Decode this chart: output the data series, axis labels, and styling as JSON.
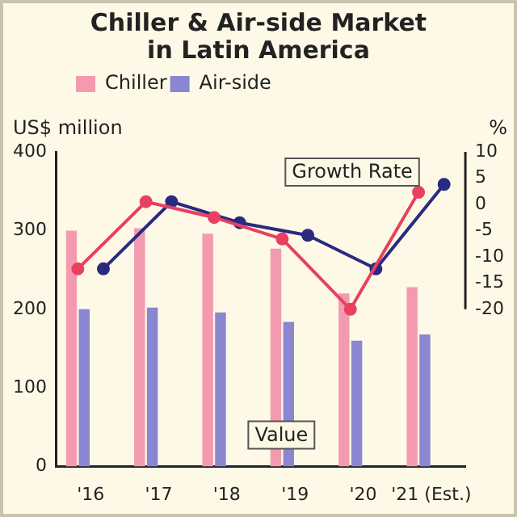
{
  "chart_data": {
    "type": "bar",
    "title": "Chiller & Air-side Market\nin Latin America",
    "ylabel": "US$ million",
    "y2label": "%",
    "categories": [
      "'16",
      "'17",
      "'18",
      "'19",
      "'20",
      "'21 (Est.)"
    ],
    "series": [
      {
        "name": "Chiller",
        "color": "#f49ab0",
        "values": [
          300,
          303,
          296,
          277,
          220,
          228
        ]
      },
      {
        "name": "Air-side",
        "color": "#8a86d0",
        "values": [
          200,
          202,
          196,
          184,
          160,
          168
        ]
      },
      {
        "type": "line",
        "axis": "y2",
        "color": "#e8405f",
        "values": [
          -12.3,
          0.5,
          -2.5,
          -6.6,
          -20,
          2.3
        ]
      },
      {
        "type": "line",
        "axis": "y2",
        "color": "#2a2a80",
        "values": [
          -12.3,
          0.5,
          -3.5,
          -5.9,
          -12.3,
          3.8
        ]
      }
    ],
    "ylim": [
      0,
      400
    ],
    "yticks": [
      0,
      100,
      200,
      300,
      400
    ],
    "y2lim": [
      -50,
      10
    ],
    "y2ticks": [
      -20,
      -15,
      -10,
      -5,
      0,
      5,
      10
    ],
    "legend": "top left",
    "marker": "circle",
    "annotations": [
      "Growth Rate",
      "Value"
    ]
  }
}
